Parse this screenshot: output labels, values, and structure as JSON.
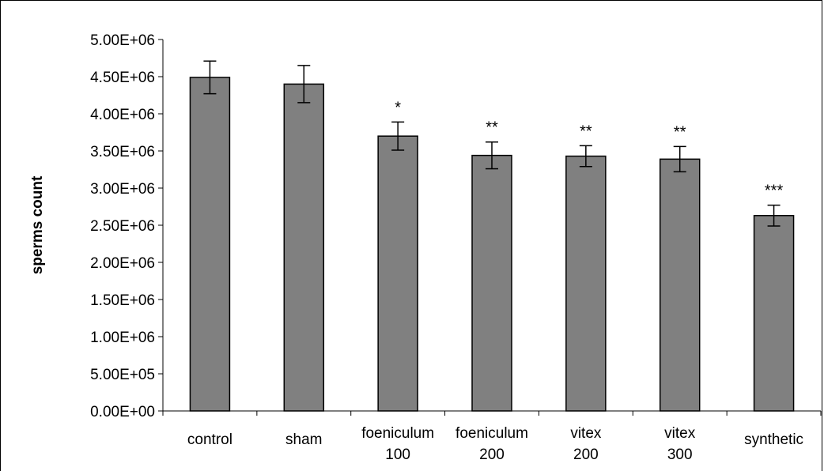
{
  "chart_data": {
    "type": "bar",
    "title": "",
    "xlabel": "",
    "ylabel": "sperms count",
    "ylim": [
      0,
      5000000
    ],
    "yticks": [
      0,
      500000,
      1000000,
      1500000,
      2000000,
      2500000,
      3000000,
      3500000,
      4000000,
      4500000,
      5000000
    ],
    "ytick_labels": [
      "0.00E+00",
      "5.00E+05",
      "1.00E+06",
      "1.50E+06",
      "2.00E+06",
      "2.50E+06",
      "3.00E+06",
      "3.50E+06",
      "4.00E+06",
      "4.50E+06",
      "5.00E+06"
    ],
    "categories": [
      [
        "control"
      ],
      [
        "sham"
      ],
      [
        "foeniculum",
        "100"
      ],
      [
        "foeniculum",
        "200"
      ],
      [
        "vitex",
        "200"
      ],
      [
        "vitex",
        "300"
      ],
      [
        "synthetic"
      ]
    ],
    "values": [
      4490000,
      4400000,
      3700000,
      3440000,
      3430000,
      3390000,
      2630000
    ],
    "errors": [
      220000,
      250000,
      190000,
      180000,
      140000,
      170000,
      140000
    ],
    "significance": [
      "",
      "",
      "*",
      "**",
      "**",
      "**",
      "***"
    ],
    "bar_color": "#808080",
    "grid": false,
    "legend": "none"
  }
}
